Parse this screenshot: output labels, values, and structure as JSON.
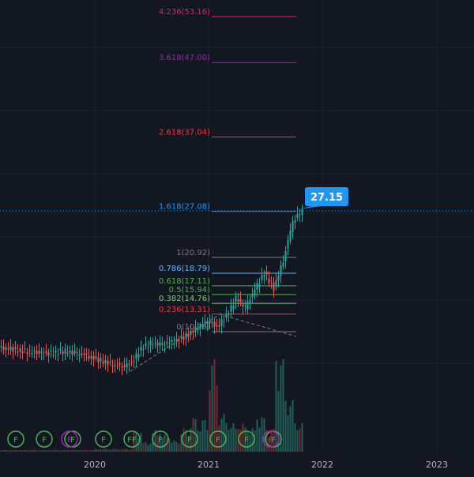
{
  "colors": {
    "background": "#131722",
    "grid": "#1e222d",
    "up": "#26a69a",
    "down": "#ef5350",
    "up_volume": "#1f5c56",
    "down_volume": "#6b2a2e",
    "price_line": "#2962ff",
    "callout": "#2196f3",
    "axis_text": "#b2b5be",
    "trend": "#787b86",
    "event_badge": "#4caf50",
    "event_badge_alt": "#9c27b0"
  },
  "price_callout": {
    "label": "27.15",
    "value": 27.15
  },
  "chart_data": {
    "type": "candlestick",
    "title": "",
    "xlabel": "",
    "ylabel": "",
    "x_ticks": [
      "2020",
      "2021",
      "2022",
      "2023"
    ],
    "ylim": [
      4,
      57
    ],
    "grid": true,
    "legend": "none",
    "fibonacci_levels": [
      {
        "label": "4.236(53.16)",
        "ratio": 4.236,
        "price": 53.16,
        "color": "#e91e63"
      },
      {
        "label": "3.618(47.00)",
        "ratio": 3.618,
        "price": 47.0,
        "color": "#9c27b0"
      },
      {
        "label": "2.618(37.04)",
        "ratio": 2.618,
        "price": 37.04,
        "color": "#f23645"
      },
      {
        "label": "1.618(27.08)",
        "ratio": 1.618,
        "price": 27.08,
        "color": "#2196f3"
      },
      {
        "label": "1(20.92)",
        "ratio": 1,
        "price": 20.92,
        "color": "#787b86"
      },
      {
        "label": "0.786(18.79)",
        "ratio": 0.786,
        "price": 18.79,
        "color": "#64b5f6"
      },
      {
        "label": "0.618(17.11)",
        "ratio": 0.618,
        "price": 17.11,
        "color": "#4caf50"
      },
      {
        "label": "0.5(15.94)",
        "ratio": 0.5,
        "price": 15.94,
        "color": "#4caf50"
      },
      {
        "label": "0.382(14.76)",
        "ratio": 0.382,
        "price": 14.76,
        "color": "#81c784"
      },
      {
        "label": "0.236(13.31)",
        "ratio": 0.236,
        "price": 13.31,
        "color": "#f23645"
      },
      {
        "label": "0(10.96)",
        "ratio": 0,
        "price": 10.96,
        "color": "#787b86"
      }
    ],
    "event_markers": [
      "F",
      "F",
      "F",
      "F",
      "FF",
      "F",
      "F",
      "F",
      "F",
      "F",
      "F",
      "F"
    ],
    "candles": [
      {
        "date": "2019-02",
        "close": 8.8,
        "up": false,
        "volume": 0.02
      },
      {
        "date": "2019-03",
        "close": 8.7,
        "up": false,
        "volume": 0.02
      },
      {
        "date": "2019-04",
        "close": 8.5,
        "up": false,
        "volume": 0.02
      },
      {
        "date": "2019-05",
        "close": 8.3,
        "up": false,
        "volume": 0.02
      },
      {
        "date": "2019-06",
        "close": 8.2,
        "up": false,
        "volume": 0.02
      },
      {
        "date": "2019-07",
        "close": 8.1,
        "up": false,
        "volume": 0.02
      },
      {
        "date": "2019-08",
        "close": 8.2,
        "up": true,
        "volume": 0.02
      },
      {
        "date": "2019-09",
        "close": 8.3,
        "up": true,
        "volume": 0.02
      },
      {
        "date": "2019-10",
        "close": 8.1,
        "up": false,
        "volume": 0.02
      },
      {
        "date": "2019-11",
        "close": 7.8,
        "up": false,
        "volume": 0.02
      },
      {
        "date": "2019-12",
        "close": 7.4,
        "up": false,
        "volume": 0.02
      },
      {
        "date": "2020-01",
        "close": 7.0,
        "up": false,
        "volume": 0.03
      },
      {
        "date": "2020-02",
        "close": 6.6,
        "up": false,
        "volume": 0.03
      },
      {
        "date": "2020-03",
        "close": 6.3,
        "up": false,
        "volume": 0.03
      },
      {
        "date": "2020-04",
        "close": 6.8,
        "up": true,
        "volume": 0.03
      },
      {
        "date": "2020-05",
        "close": 8.7,
        "up": true,
        "volume": 0.22
      },
      {
        "date": "2020-06",
        "close": 9.4,
        "up": true,
        "volume": 0.1
      },
      {
        "date": "2020-07",
        "close": 9.3,
        "up": false,
        "volume": 0.23
      },
      {
        "date": "2020-08",
        "close": 9.4,
        "up": true,
        "volume": 0.18
      },
      {
        "date": "2020-09",
        "close": 9.9,
        "up": true,
        "volume": 0.12
      },
      {
        "date": "2020-10",
        "close": 10.6,
        "up": true,
        "volume": 0.25
      },
      {
        "date": "2020-11",
        "close": 11.6,
        "up": true,
        "volume": 0.37
      },
      {
        "date": "2020-12",
        "close": 12.5,
        "up": true,
        "volume": 0.35
      },
      {
        "date": "2021-01",
        "close": 11.6,
        "up": false,
        "volume": 1.0
      },
      {
        "date": "2021-02",
        "close": 13.0,
        "up": true,
        "volume": 0.4
      },
      {
        "date": "2021-03",
        "close": 15.4,
        "up": true,
        "volume": 0.3
      },
      {
        "date": "2021-04",
        "close": 14.2,
        "up": false,
        "volume": 0.3
      },
      {
        "date": "2021-05",
        "close": 16.6,
        "up": true,
        "volume": 0.25
      },
      {
        "date": "2021-06",
        "close": 18.8,
        "up": true,
        "volume": 0.38
      },
      {
        "date": "2021-07",
        "close": 16.8,
        "up": false,
        "volume": 0.25
      },
      {
        "date": "2021-08",
        "close": 20.5,
        "up": true,
        "volume": 1.0
      },
      {
        "date": "2021-09",
        "close": 25.8,
        "up": true,
        "volume": 0.55
      },
      {
        "date": "2021-10",
        "close": 27.15,
        "up": true,
        "volume": 0.3
      }
    ]
  }
}
